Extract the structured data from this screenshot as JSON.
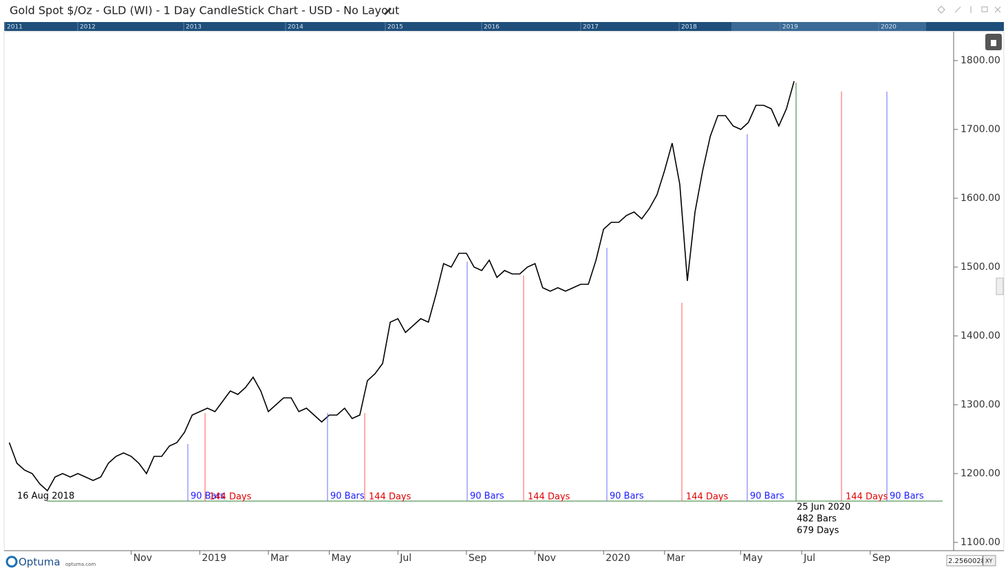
{
  "header": {
    "title": "Gold Spot $/Oz - GLD (WI) - 1 Day CandleStick Chart - USD - No Layout"
  },
  "navigator": {
    "years": [
      "2011",
      "2012",
      "2013",
      "2014",
      "2015",
      "2016",
      "2017",
      "2018",
      "2019",
      "2020"
    ]
  },
  "chart_data": {
    "type": "line",
    "color": "#000000",
    "categories": [
      null,
      null,
      null,
      null,
      null,
      null,
      null,
      null,
      null,
      null,
      null,
      null,
      null,
      null,
      null,
      null,
      "Nov",
      null,
      null,
      null,
      null,
      null,
      null,
      null,
      null,
      "2019",
      null,
      null,
      null,
      null,
      null,
      null,
      null,
      null,
      "Mar",
      null,
      null,
      null,
      null,
      null,
      null,
      null,
      "May",
      null,
      null,
      null,
      null,
      null,
      null,
      null,
      null,
      "Jul",
      null,
      null,
      null,
      null,
      null,
      null,
      null,
      null,
      "Sep",
      null,
      null,
      null,
      null,
      null,
      null,
      null,
      null,
      "Nov",
      null,
      null,
      null,
      null,
      null,
      null,
      null,
      null,
      "2020",
      null,
      null,
      null,
      null,
      null,
      null,
      null,
      "Mar",
      null,
      null,
      null,
      null,
      null,
      null,
      null,
      null,
      null,
      "May",
      null,
      null,
      null,
      null,
      null,
      null,
      null,
      "Jul",
      null,
      null,
      null,
      null,
      null,
      null,
      null,
      null,
      "Sep",
      null,
      null,
      null,
      null,
      null,
      null,
      null,
      null,
      null
    ],
    "values": [
      1245,
      1215,
      1205,
      1200,
      1185,
      1175,
      1195,
      1200,
      1195,
      1200,
      1195,
      1190,
      1195,
      1215,
      1225,
      1230,
      1225,
      1215,
      1200,
      1225,
      1225,
      1240,
      1245,
      1260,
      1285,
      1290,
      1295,
      1290,
      1305,
      1320,
      1315,
      1325,
      1340,
      1320,
      1290,
      1300,
      1310,
      1310,
      1290,
      1295,
      1285,
      1275,
      1285,
      1285,
      1295,
      1280,
      1285,
      1335,
      1345,
      1360,
      1420,
      1425,
      1405,
      1415,
      1425,
      1420,
      1460,
      1505,
      1500,
      1520,
      1520,
      1500,
      1495,
      1510,
      1485,
      1495,
      1490,
      1490,
      1500,
      1505,
      1470,
      1465,
      1470,
      1465,
      1470,
      1475,
      1475,
      1510,
      1555,
      1565,
      1565,
      1575,
      1580,
      1570,
      1585,
      1605,
      1640,
      1680,
      1620,
      1480,
      1580,
      1640,
      1690,
      1720,
      1720,
      1705,
      1700,
      1710,
      1735,
      1735,
      1730,
      1705,
      1730,
      1770,
      null,
      null,
      null,
      null,
      null,
      null,
      null,
      null,
      null,
      null,
      null,
      null,
      null,
      null,
      null,
      null,
      null,
      null,
      null
    ],
    "ylim": [
      1088,
      1841
    ],
    "yticks": [
      {
        "value": 1100,
        "label": "1100.00"
      },
      {
        "value": 1200,
        "label": "1200.00"
      },
      {
        "value": 1300,
        "label": "1300.00"
      },
      {
        "value": 1400,
        "label": "1400.00"
      },
      {
        "value": 1500,
        "label": "1500.00"
      },
      {
        "value": 1600,
        "label": "1600.00"
      },
      {
        "value": 1700,
        "label": "1700.00"
      },
      {
        "value": 1800,
        "label": "1800.00"
      }
    ],
    "annotations": {
      "start": "16 Aug 2018",
      "bars": [
        "90 Bars",
        "90 Bars",
        "90 Bars",
        "90 Bars",
        "90 Bars",
        "90 Bars"
      ],
      "days": [
        "144 Days",
        "144 Days",
        "144 Days",
        "144 Days",
        "144 Days"
      ],
      "end": [
        "25 Jun 2020",
        "482 Bars",
        "679 Days"
      ]
    }
  },
  "footer": {
    "logo": "Optuma",
    "site": "optuma.com",
    "readout": "2.2560028",
    "mode": "XY"
  }
}
